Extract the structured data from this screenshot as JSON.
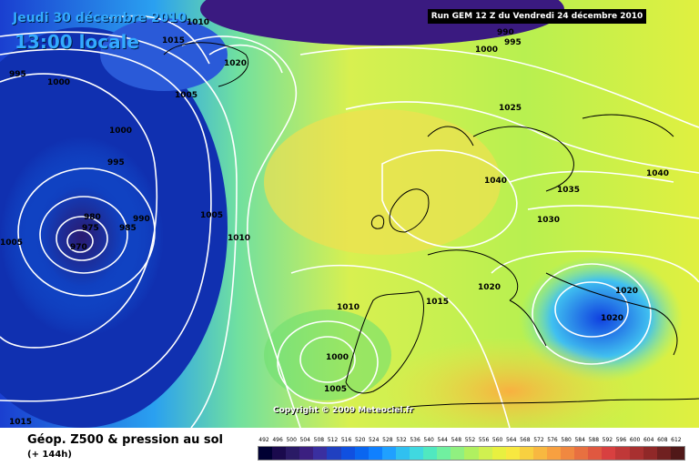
{
  "header": {
    "date": "Jeudi 30 décembre 2010",
    "time": "13:00 locale",
    "run": "Run GEM 12 Z du Vendredi 24 décembre 2010"
  },
  "copyright": "Copyright © 2009 Meteociel.fr",
  "legend": {
    "title": "Géop. Z500 & pression au sol",
    "subtitle": "(+ 144h)",
    "ticks": [
      "492",
      "496",
      "500",
      "504",
      "508",
      "512",
      "516",
      "520",
      "524",
      "528",
      "532",
      "536",
      "540",
      "544",
      "548",
      "552",
      "556",
      "560",
      "564",
      "568",
      "572",
      "576",
      "580",
      "584",
      "588",
      "592",
      "596",
      "600",
      "604",
      "608",
      "612"
    ],
    "colors": [
      "#000033",
      "#1a0a4d",
      "#2a1a66",
      "#3b1f80",
      "#3a2fa0",
      "#2040c0",
      "#1050e0",
      "#0a66f0",
      "#1080ff",
      "#20a0ff",
      "#30c0f0",
      "#40d8e0",
      "#50e8c0",
      "#70f0a0",
      "#90f080",
      "#b0f060",
      "#d0f050",
      "#e8f040",
      "#f8e840",
      "#f8d040",
      "#f8b840",
      "#f8a040",
      "#f08840",
      "#e87040",
      "#e05840",
      "#d84040",
      "#c03838",
      "#a83030",
      "#902828",
      "#702020",
      "#501818"
    ]
  },
  "isobars": [
    "1010",
    "1015",
    "995",
    "1000",
    "1005",
    "1020",
    "1000",
    "995",
    "990",
    "980",
    "975",
    "985",
    "970",
    "990",
    "995",
    "1005",
    "1000",
    "1005",
    "1010",
    "1025",
    "1040",
    "1040",
    "1035",
    "1030",
    "1020",
    "1015",
    "1010",
    "1020",
    "1020",
    "1000",
    "1005",
    "1015"
  ]
}
